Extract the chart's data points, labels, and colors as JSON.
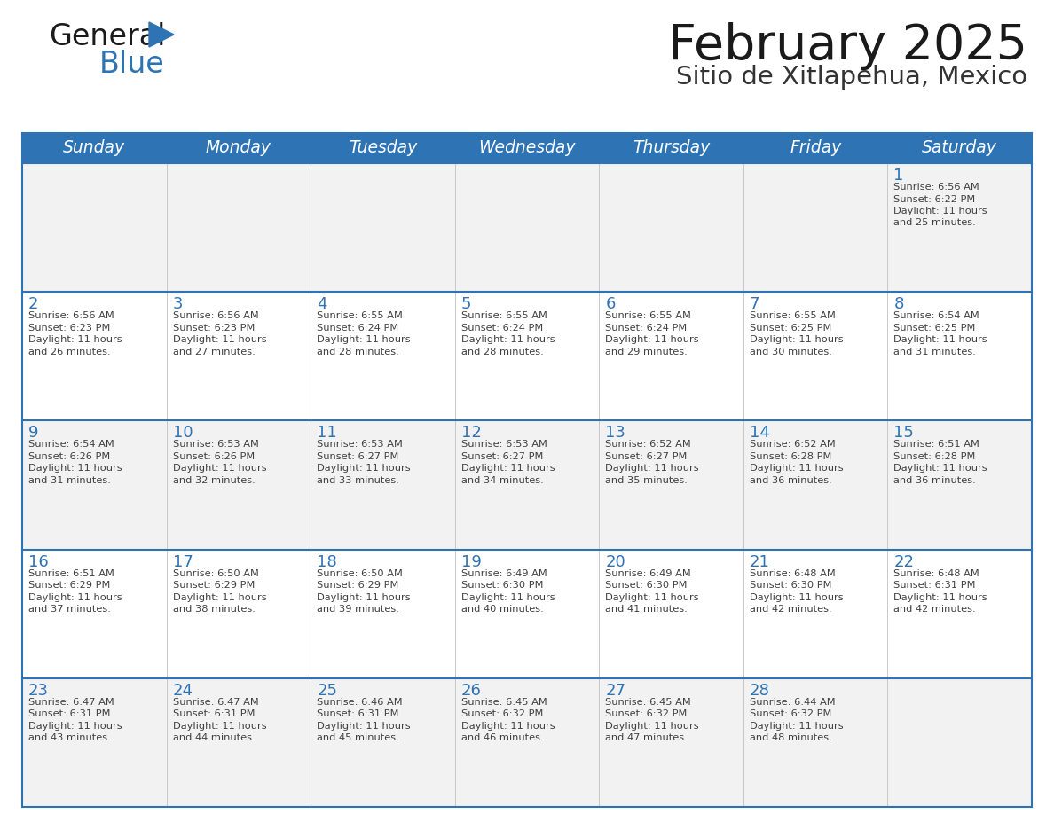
{
  "title": "February 2025",
  "subtitle": "Sitio de Xitlapehua, Mexico",
  "days_of_week": [
    "Sunday",
    "Monday",
    "Tuesday",
    "Wednesday",
    "Thursday",
    "Friday",
    "Saturday"
  ],
  "header_bg": "#2e74b5",
  "header_text_color": "#ffffff",
  "row_bg_colors": [
    "#f2f2f2",
    "#ffffff",
    "#f2f2f2",
    "#ffffff",
    "#f2f2f2"
  ],
  "cell_border_color": "#2e74b5",
  "day_number_color": "#2e74b5",
  "text_color": "#404040",
  "title_color": "#1a1a1a",
  "subtitle_color": "#333333",
  "logo_general_color": "#1a1a1a",
  "logo_blue_color": "#2e74b5",
  "logo_triangle_color": "#2e74b5",
  "calendar": [
    [
      null,
      null,
      null,
      null,
      null,
      null,
      {
        "day": 1,
        "sunrise": "6:56 AM",
        "sunset": "6:22 PM",
        "daylight": "11 hours and 25 minutes"
      }
    ],
    [
      {
        "day": 2,
        "sunrise": "6:56 AM",
        "sunset": "6:23 PM",
        "daylight": "11 hours and 26 minutes"
      },
      {
        "day": 3,
        "sunrise": "6:56 AM",
        "sunset": "6:23 PM",
        "daylight": "11 hours and 27 minutes"
      },
      {
        "day": 4,
        "sunrise": "6:55 AM",
        "sunset": "6:24 PM",
        "daylight": "11 hours and 28 minutes"
      },
      {
        "day": 5,
        "sunrise": "6:55 AM",
        "sunset": "6:24 PM",
        "daylight": "11 hours and 28 minutes"
      },
      {
        "day": 6,
        "sunrise": "6:55 AM",
        "sunset": "6:24 PM",
        "daylight": "11 hours and 29 minutes"
      },
      {
        "day": 7,
        "sunrise": "6:55 AM",
        "sunset": "6:25 PM",
        "daylight": "11 hours and 30 minutes"
      },
      {
        "day": 8,
        "sunrise": "6:54 AM",
        "sunset": "6:25 PM",
        "daylight": "11 hours and 31 minutes"
      }
    ],
    [
      {
        "day": 9,
        "sunrise": "6:54 AM",
        "sunset": "6:26 PM",
        "daylight": "11 hours and 31 minutes"
      },
      {
        "day": 10,
        "sunrise": "6:53 AM",
        "sunset": "6:26 PM",
        "daylight": "11 hours and 32 minutes"
      },
      {
        "day": 11,
        "sunrise": "6:53 AM",
        "sunset": "6:27 PM",
        "daylight": "11 hours and 33 minutes"
      },
      {
        "day": 12,
        "sunrise": "6:53 AM",
        "sunset": "6:27 PM",
        "daylight": "11 hours and 34 minutes"
      },
      {
        "day": 13,
        "sunrise": "6:52 AM",
        "sunset": "6:27 PM",
        "daylight": "11 hours and 35 minutes"
      },
      {
        "day": 14,
        "sunrise": "6:52 AM",
        "sunset": "6:28 PM",
        "daylight": "11 hours and 36 minutes"
      },
      {
        "day": 15,
        "sunrise": "6:51 AM",
        "sunset": "6:28 PM",
        "daylight": "11 hours and 36 minutes"
      }
    ],
    [
      {
        "day": 16,
        "sunrise": "6:51 AM",
        "sunset": "6:29 PM",
        "daylight": "11 hours and 37 minutes"
      },
      {
        "day": 17,
        "sunrise": "6:50 AM",
        "sunset": "6:29 PM",
        "daylight": "11 hours and 38 minutes"
      },
      {
        "day": 18,
        "sunrise": "6:50 AM",
        "sunset": "6:29 PM",
        "daylight": "11 hours and 39 minutes"
      },
      {
        "day": 19,
        "sunrise": "6:49 AM",
        "sunset": "6:30 PM",
        "daylight": "11 hours and 40 minutes"
      },
      {
        "day": 20,
        "sunrise": "6:49 AM",
        "sunset": "6:30 PM",
        "daylight": "11 hours and 41 minutes"
      },
      {
        "day": 21,
        "sunrise": "6:48 AM",
        "sunset": "6:30 PM",
        "daylight": "11 hours and 42 minutes"
      },
      {
        "day": 22,
        "sunrise": "6:48 AM",
        "sunset": "6:31 PM",
        "daylight": "11 hours and 42 minutes"
      }
    ],
    [
      {
        "day": 23,
        "sunrise": "6:47 AM",
        "sunset": "6:31 PM",
        "daylight": "11 hours and 43 minutes"
      },
      {
        "day": 24,
        "sunrise": "6:47 AM",
        "sunset": "6:31 PM",
        "daylight": "11 hours and 44 minutes"
      },
      {
        "day": 25,
        "sunrise": "6:46 AM",
        "sunset": "6:31 PM",
        "daylight": "11 hours and 45 minutes"
      },
      {
        "day": 26,
        "sunrise": "6:45 AM",
        "sunset": "6:32 PM",
        "daylight": "11 hours and 46 minutes"
      },
      {
        "day": 27,
        "sunrise": "6:45 AM",
        "sunset": "6:32 PM",
        "daylight": "11 hours and 47 minutes"
      },
      {
        "day": 28,
        "sunrise": "6:44 AM",
        "sunset": "6:32 PM",
        "daylight": "11 hours and 48 minutes"
      },
      null
    ]
  ]
}
